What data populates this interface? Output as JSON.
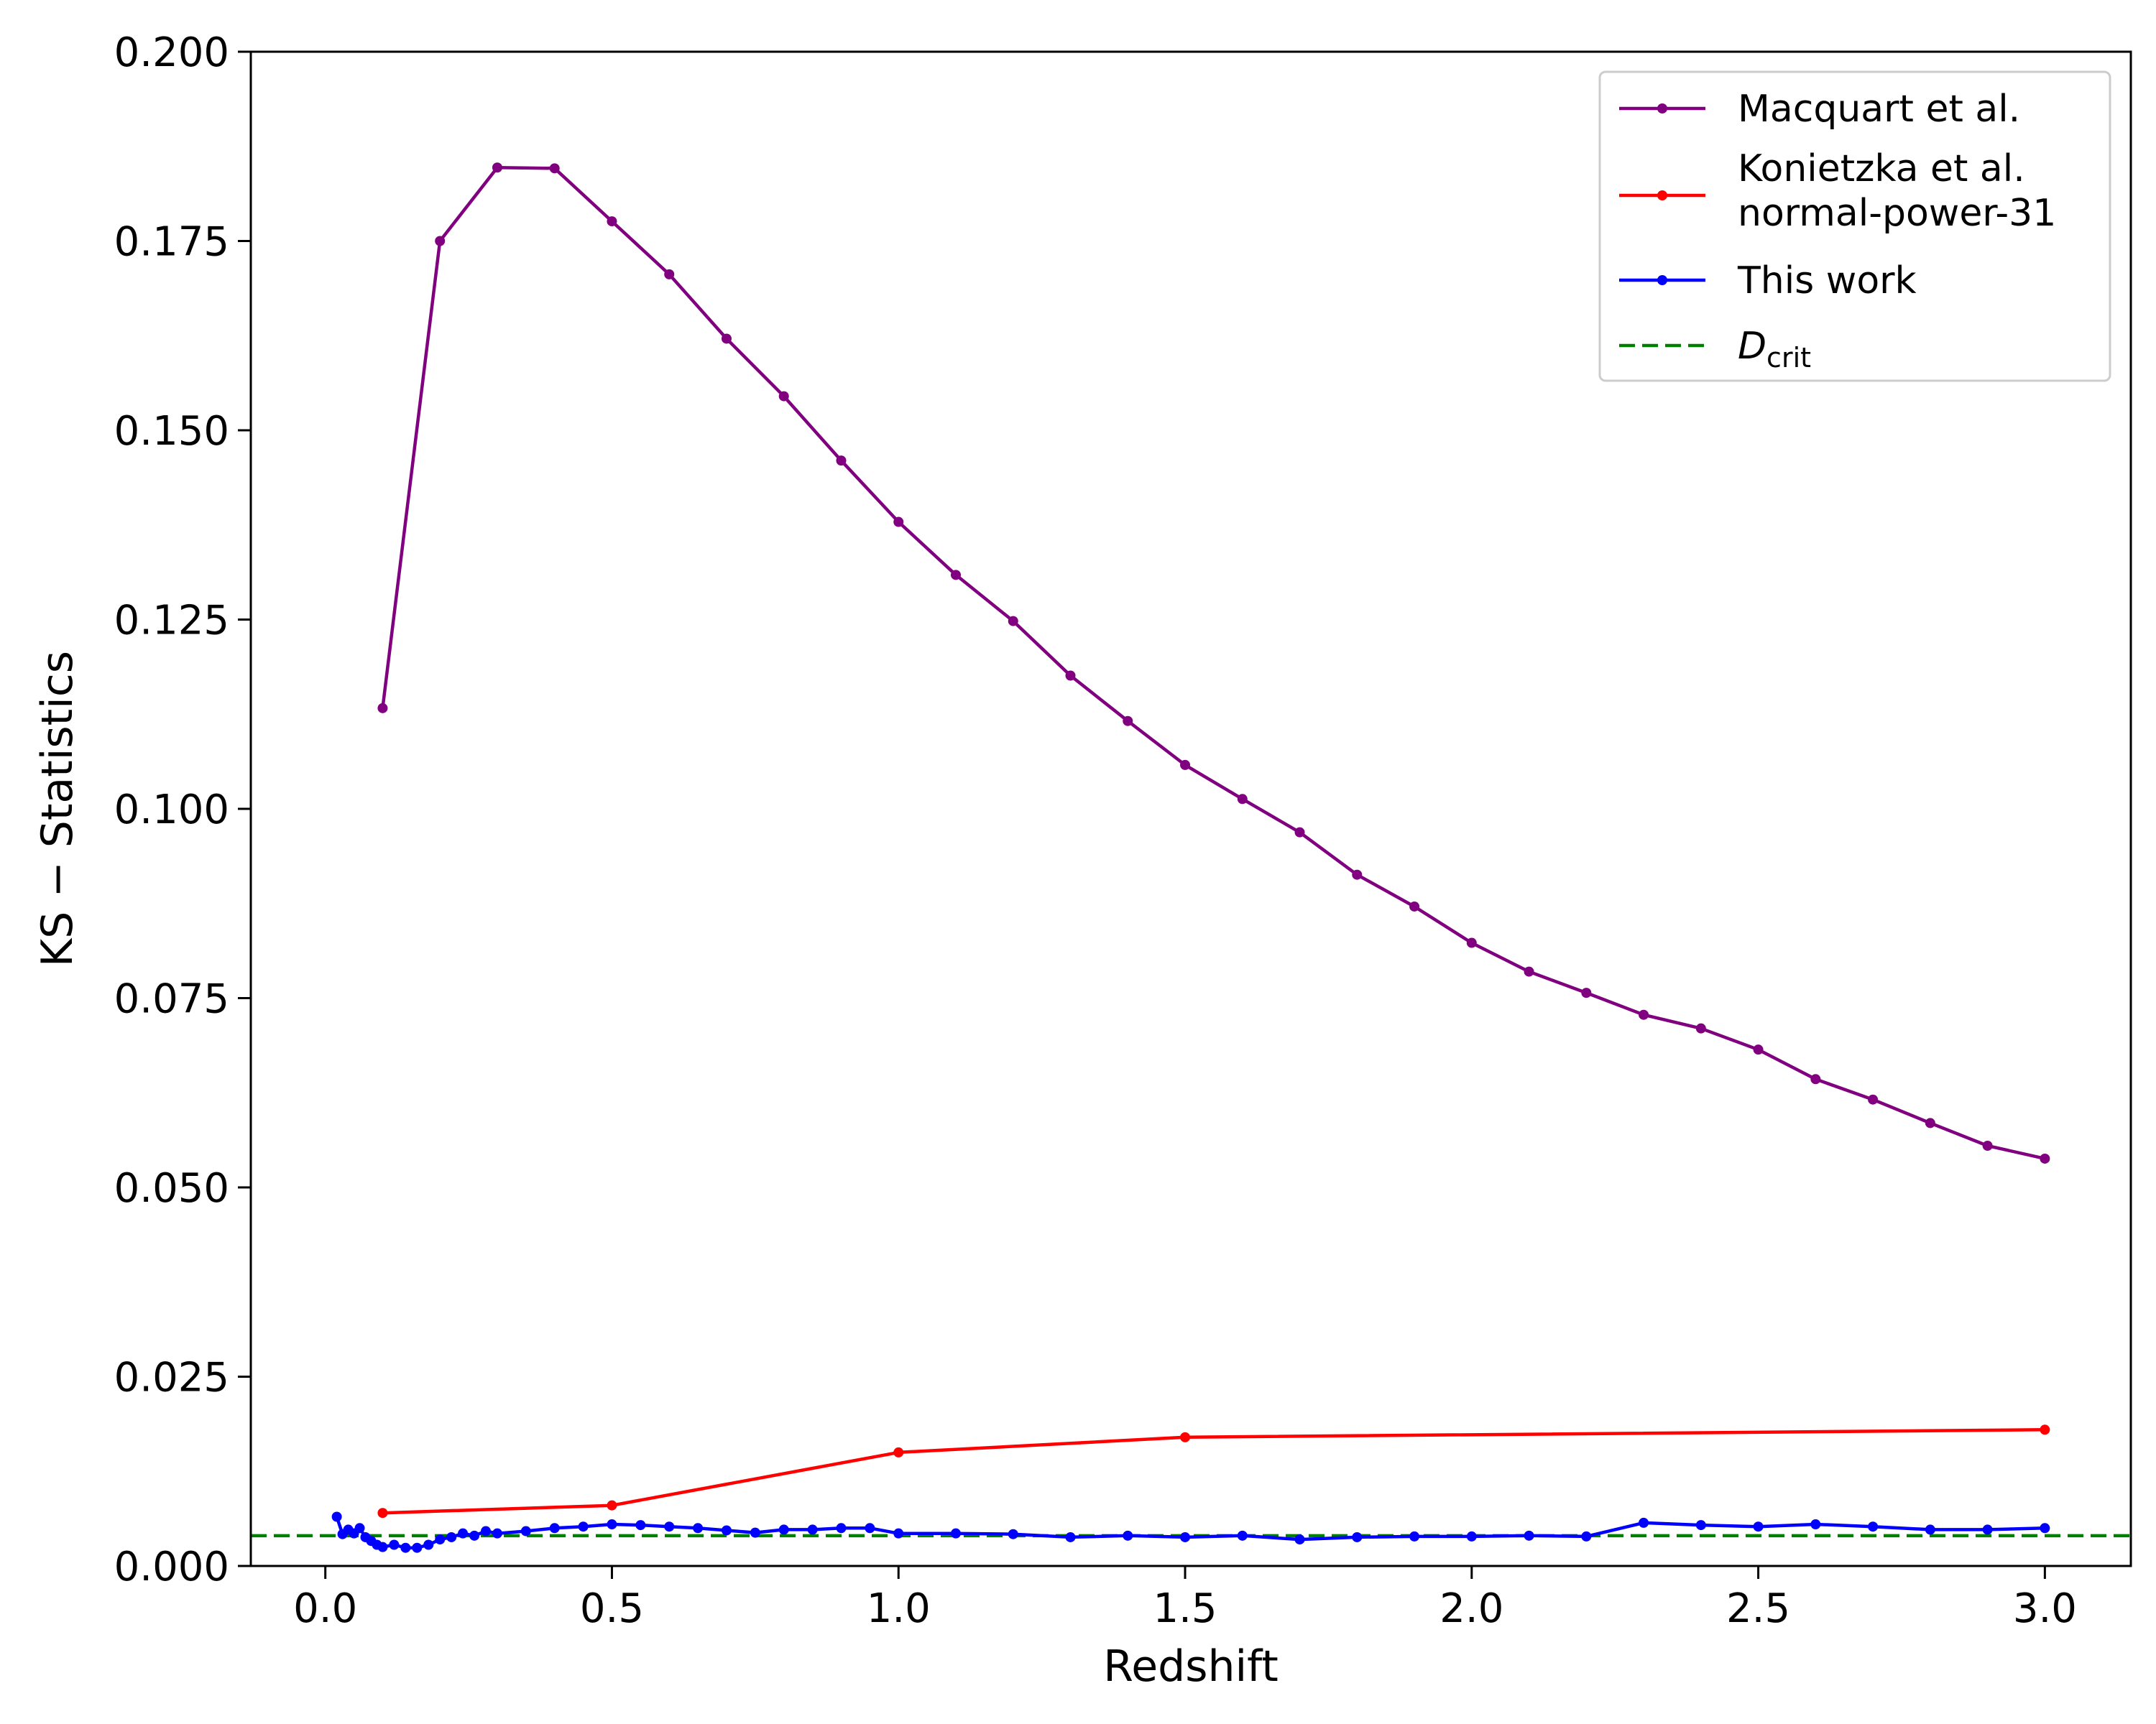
{
  "chart_data": {
    "type": "line",
    "xlabel": "Redshift",
    "ylabel": "KS − Statistics",
    "xlim": [
      -0.13,
      3.15
    ],
    "ylim": [
      0.0,
      0.2
    ],
    "xticks": [
      "0.0",
      "0.5",
      "1.0",
      "1.5",
      "2.0",
      "2.5",
      "3.0"
    ],
    "yticks": [
      "0.000",
      "0.025",
      "0.050",
      "0.075",
      "0.100",
      "0.125",
      "0.150",
      "0.175",
      "0.200"
    ],
    "grid": false,
    "legend_position": "top-right",
    "series": [
      {
        "name": "Macquart et al.",
        "color": "#800080",
        "marker": "dot",
        "x": [
          0.1,
          0.2,
          0.3,
          0.4,
          0.5,
          0.6,
          0.7,
          0.8,
          0.9,
          1.0,
          1.1,
          1.2,
          1.3,
          1.4,
          1.5,
          1.6,
          1.7,
          1.8,
          1.9,
          2.0,
          2.1,
          2.2,
          2.3,
          2.4,
          2.5,
          2.6,
          2.7,
          2.8,
          2.9,
          3.0
        ],
        "y": [
          0.1133,
          0.175,
          0.1847,
          0.1846,
          0.1776,
          0.1706,
          0.1621,
          0.1545,
          0.146,
          0.1379,
          0.1309,
          0.1248,
          0.1176,
          0.1116,
          0.1058,
          0.1013,
          0.0969,
          0.0913,
          0.0871,
          0.0823,
          0.0785,
          0.0757,
          0.0728,
          0.071,
          0.0682,
          0.0643,
          0.0616,
          0.0585,
          0.0555,
          0.0538
        ]
      },
      {
        "name": "Konietzka et al.\nnormal-power-31",
        "legend_lines": [
          "Konietzka et al.",
          "normal-power-31"
        ],
        "color": "#ff0000",
        "marker": "dot",
        "x": [
          0.1,
          0.5,
          1.0,
          1.5,
          3.0
        ],
        "y": [
          0.007,
          0.008,
          0.015,
          0.017,
          0.018
        ]
      },
      {
        "name": "This work",
        "color": "#0000ff",
        "marker": "dot",
        "x": [
          0.02,
          0.03,
          0.04,
          0.05,
          0.06,
          0.07,
          0.08,
          0.09,
          0.1,
          0.12,
          0.14,
          0.16,
          0.18,
          0.2,
          0.22,
          0.24,
          0.26,
          0.28,
          0.3,
          0.35,
          0.4,
          0.45,
          0.5,
          0.55,
          0.6,
          0.65,
          0.7,
          0.75,
          0.8,
          0.85,
          0.9,
          0.95,
          1.0,
          1.1,
          1.2,
          1.3,
          1.4,
          1.5,
          1.6,
          1.7,
          1.8,
          1.9,
          2.0,
          2.1,
          2.2,
          2.3,
          2.4,
          2.5,
          2.6,
          2.7,
          2.8,
          2.9,
          3.0
        ],
        "y": [
          0.0065,
          0.0042,
          0.0048,
          0.0043,
          0.005,
          0.0038,
          0.0033,
          0.0028,
          0.0025,
          0.0028,
          0.0024,
          0.0024,
          0.0028,
          0.0035,
          0.0038,
          0.0043,
          0.004,
          0.0046,
          0.0043,
          0.0046,
          0.005,
          0.0052,
          0.0055,
          0.0054,
          0.0052,
          0.005,
          0.0047,
          0.0044,
          0.0048,
          0.0048,
          0.005,
          0.005,
          0.0043,
          0.0043,
          0.0042,
          0.0038,
          0.004,
          0.0038,
          0.004,
          0.0035,
          0.0038,
          0.0039,
          0.0039,
          0.004,
          0.0039,
          0.0057,
          0.0054,
          0.0052,
          0.0055,
          0.0052,
          0.0048,
          0.0048,
          0.005
        ]
      }
    ],
    "reference_line": {
      "label_main": "D",
      "label_sub": "crit",
      "color": "#008000",
      "style": "dashed",
      "y": 0.004
    }
  }
}
